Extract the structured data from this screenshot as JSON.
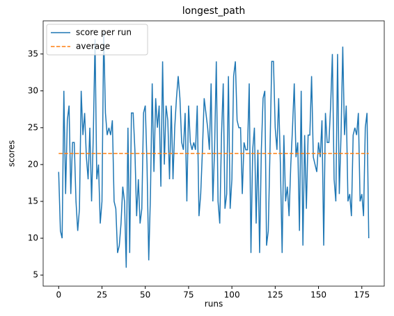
{
  "chart_data": {
    "type": "line",
    "title": "longest_path",
    "xlabel": "runs",
    "ylabel": "scores",
    "xlim": [
      -8.95,
      187.95
    ],
    "ylim": [
      3.5,
      39.5
    ],
    "xticks": [
      0,
      25,
      50,
      75,
      100,
      125,
      150,
      175
    ],
    "yticks": [
      5,
      10,
      15,
      20,
      25,
      30,
      35
    ],
    "legend": "upper left",
    "grid": false,
    "series": [
      {
        "name": "score per run",
        "color": "#1f77b4",
        "style": "solid",
        "x": [
          0,
          1,
          2,
          3,
          4,
          5,
          6,
          7,
          8,
          9,
          10,
          11,
          12,
          13,
          14,
          15,
          16,
          17,
          18,
          19,
          20,
          21,
          22,
          23,
          24,
          25,
          26,
          27,
          28,
          29,
          30,
          31,
          32,
          33,
          34,
          35,
          36,
          37,
          38,
          39,
          40,
          41,
          42,
          43,
          44,
          45,
          46,
          47,
          48,
          49,
          50,
          51,
          52,
          53,
          54,
          55,
          56,
          57,
          58,
          59,
          60,
          61,
          62,
          63,
          64,
          65,
          66,
          67,
          68,
          69,
          70,
          71,
          72,
          73,
          74,
          75,
          76,
          77,
          78,
          79,
          80,
          81,
          82,
          83,
          84,
          85,
          86,
          87,
          88,
          89,
          90,
          91,
          92,
          93,
          94,
          95,
          96,
          97,
          98,
          99,
          100,
          101,
          102,
          103,
          104,
          105,
          106,
          107,
          108,
          109,
          110,
          111,
          112,
          113,
          114,
          115,
          116,
          117,
          118,
          119,
          120,
          121,
          122,
          123,
          124,
          125,
          126,
          127,
          128,
          129,
          130,
          131,
          132,
          133,
          134,
          135,
          136,
          137,
          138,
          139,
          140,
          141,
          142,
          143,
          144,
          145,
          146,
          147,
          148,
          149,
          150,
          151,
          152,
          153,
          154,
          155,
          156,
          157,
          158,
          159,
          160,
          161,
          162,
          163,
          164,
          165,
          166,
          167,
          168,
          169,
          170,
          171,
          172,
          173,
          174,
          175,
          176,
          177,
          178,
          179
        ],
        "values": [
          19,
          11,
          10,
          30,
          16,
          26,
          28,
          16,
          23,
          23,
          15,
          11,
          14,
          30,
          24,
          27,
          21,
          18,
          25,
          15,
          24,
          37,
          18,
          20,
          12,
          15,
          38,
          27,
          24,
          25,
          24,
          26,
          15,
          14,
          8,
          9,
          12,
          17,
          15,
          6,
          25,
          8,
          27,
          27,
          22,
          13,
          18,
          12,
          14,
          27,
          28,
          20,
          7,
          16,
          31,
          19,
          29,
          25,
          28,
          17,
          34,
          20,
          28,
          26,
          18,
          28,
          18,
          25,
          29,
          32,
          29,
          23,
          22,
          27,
          15,
          28,
          23,
          22,
          23,
          22,
          28,
          13,
          16,
          22,
          29,
          27,
          25,
          22,
          31,
          15,
          22,
          34,
          15,
          12,
          24,
          31,
          14,
          16,
          32,
          14,
          18,
          32,
          34,
          26,
          25,
          25,
          16,
          23,
          22,
          22,
          31,
          8,
          22,
          25,
          12,
          22,
          8,
          22,
          29,
          30,
          9,
          11,
          22,
          34,
          34,
          25,
          22,
          29,
          20,
          8,
          24,
          15,
          17,
          13,
          20,
          25,
          31,
          21,
          23,
          11,
          30,
          9,
          24,
          14,
          24,
          24,
          32,
          21,
          20,
          19,
          23,
          21,
          26,
          9,
          27,
          23,
          23,
          28,
          35,
          18,
          15,
          35,
          16,
          24,
          36,
          24,
          28,
          15,
          16,
          13,
          24,
          25,
          24,
          27,
          15,
          16,
          13,
          25,
          27,
          10
        ]
      },
      {
        "name": "average",
        "color": "#ff7f0e",
        "style": "dashed",
        "x": [
          0,
          179
        ],
        "values": [
          21.5,
          21.5
        ]
      }
    ]
  }
}
